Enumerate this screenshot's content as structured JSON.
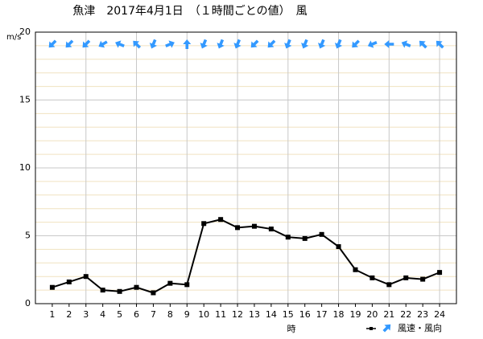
{
  "chart_data": {
    "type": "line",
    "title": "魚津　2017年4月1日　（１時間ごとの値）　風",
    "y_unit": "m/s",
    "x_label": "時",
    "x": [
      1,
      2,
      3,
      4,
      5,
      6,
      7,
      8,
      9,
      10,
      11,
      12,
      13,
      14,
      15,
      16,
      17,
      18,
      19,
      20,
      21,
      22,
      23,
      24
    ],
    "series": [
      {
        "name": "風速・風向",
        "color": "#000000",
        "values": [
          1.2,
          1.6,
          2.0,
          1.0,
          0.9,
          1.2,
          0.8,
          1.5,
          1.4,
          5.9,
          6.2,
          5.6,
          5.7,
          5.5,
          4.9,
          4.8,
          5.1,
          4.2,
          2.5,
          1.9,
          1.4,
          1.9,
          1.8,
          2.3
        ]
      }
    ],
    "wind_direction_deg": [
      225,
      225,
      225,
      240,
      292.5,
      315,
      202.5,
      67.5,
      0,
      202.5,
      202.5,
      202.5,
      225,
      225,
      202.5,
      202.5,
      202.5,
      202.5,
      225,
      247.5,
      270,
      292.5,
      315,
      315
    ],
    "arrow_color": "#3399ff",
    "xlim": [
      0,
      25
    ],
    "xticks": [
      1,
      2,
      3,
      4,
      5,
      6,
      7,
      8,
      9,
      10,
      11,
      12,
      13,
      14,
      15,
      16,
      17,
      18,
      19,
      20,
      21,
      22,
      23,
      24
    ],
    "xgrid_every": 3,
    "ylim": [
      0,
      20
    ],
    "yticks": [
      0,
      5,
      10,
      15,
      20
    ],
    "yminor": [
      1,
      2,
      3,
      4,
      6,
      7,
      8,
      9,
      11,
      12,
      13,
      14,
      16,
      17,
      18,
      19
    ],
    "grid": true
  }
}
